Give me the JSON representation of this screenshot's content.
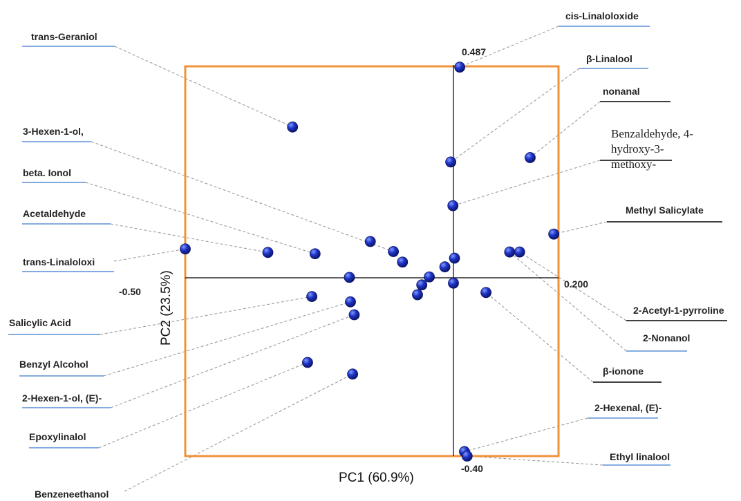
{
  "chart_data": {
    "type": "scatter",
    "xlabel": "PC1 (60.9%)",
    "ylabel": "PC2 (23.5%)",
    "xlim": [
      -0.5,
      0.2
    ],
    "ylim": [
      -0.4,
      0.487
    ],
    "tick_labels": {
      "x_min": "-0.50",
      "x_max": "0.200",
      "y_max": "0.487",
      "y_min": "-0.40"
    },
    "colors": {
      "frame": "#f0923a",
      "point": "#1a2fb0",
      "leader": "#9a9a9a",
      "underline_blue": "#5a8fd6",
      "underline_black": "#000000"
    },
    "points": [
      {
        "x": -0.3,
        "y": 0.345
      },
      {
        "x": -0.005,
        "y": 0.265
      },
      {
        "x": 0.146,
        "y": 0.275
      },
      {
        "x": -0.001,
        "y": 0.165
      },
      {
        "x": 0.191,
        "y": 0.1
      },
      {
        "x": -0.5,
        "y": 0.066
      },
      {
        "x": -0.346,
        "y": 0.058
      },
      {
        "x": -0.258,
        "y": 0.055
      },
      {
        "x": -0.155,
        "y": 0.083
      },
      {
        "x": -0.112,
        "y": 0.06
      },
      {
        "x": -0.095,
        "y": 0.036
      },
      {
        "x": -0.016,
        "y": 0.025
      },
      {
        "x": 0.002,
        "y": 0.045
      },
      {
        "x": 0.107,
        "y": 0.059
      },
      {
        "x": 0.126,
        "y": 0.059
      },
      {
        "x": -0.194,
        "y": 0.001
      },
      {
        "x": -0.045,
        "y": 0.002
      },
      {
        "x": -0.059,
        "y": -0.016
      },
      {
        "x": -0.067,
        "y": -0.038
      },
      {
        "x": 0.0,
        "y": -0.012
      },
      {
        "x": 0.062,
        "y": -0.033
      },
      {
        "x": -0.264,
        "y": -0.042
      },
      {
        "x": -0.192,
        "y": -0.054
      },
      {
        "x": -0.185,
        "y": -0.083
      },
      {
        "x": -0.272,
        "y": -0.19
      },
      {
        "x": -0.188,
        "y": -0.216
      },
      {
        "x": 0.021,
        "y": -0.39
      },
      {
        "x": 0.026,
        "y": -0.4
      },
      {
        "x": 0.012,
        "y": 0.482
      }
    ],
    "annotations": [
      {
        "text": "trans-Geraniol",
        "side": "left"
      },
      {
        "text": "3-Hexen-1-ol,",
        "side": "left"
      },
      {
        "text": "beta. Ionol",
        "side": "left"
      },
      {
        "text": "Acetaldehyde",
        "side": "left"
      },
      {
        "text": "trans-Linaloloxi",
        "side": "left"
      },
      {
        "text": "Salicylic Acid",
        "side": "left"
      },
      {
        "text": "Benzyl Alcohol",
        "side": "left"
      },
      {
        "text": "2-Hexen-1-ol, (E)-",
        "side": "left"
      },
      {
        "text": "Epoxylinalol",
        "side": "left"
      },
      {
        "text": "Benzeneethanol",
        "side": "left"
      },
      {
        "text": "cis-Linaloloxide",
        "side": "right"
      },
      {
        "text": "β-Linalool",
        "side": "right"
      },
      {
        "text": "nonanal",
        "side": "right"
      },
      {
        "text": "Benzaldehyde, 4-hydroxy-3-methoxy-",
        "lines": [
          "Benzaldehyde, 4-",
          "hydroxy-3-",
          "methoxy-"
        ],
        "side": "right"
      },
      {
        "text": "Methyl Salicylate",
        "side": "right"
      },
      {
        "text": "2-Acetyl-1-pyrroline",
        "side": "right"
      },
      {
        "text": "2-Nonanol",
        "side": "right"
      },
      {
        "text": "β-ionone",
        "side": "right"
      },
      {
        "text": "2-Hexenal, (E)-",
        "side": "right"
      },
      {
        "text": "Ethyl linalool",
        "side": "right"
      }
    ]
  }
}
